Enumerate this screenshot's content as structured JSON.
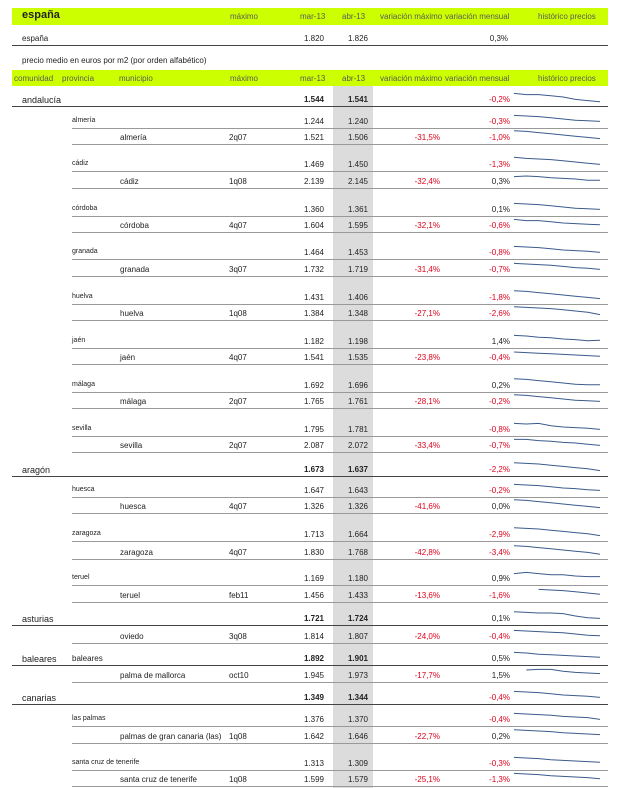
{
  "header": {
    "title": "españa",
    "col_max": "máximo",
    "col_mar": "mar-13",
    "col_abr": "abr-13",
    "col_var_max": "variación máximo",
    "col_var_mens": "variación mensual",
    "col_hist": "histórico precios"
  },
  "spain_row": {
    "name": "españa",
    "mar": "1.820",
    "abr": "1.826",
    "var_mens": "0,3%"
  },
  "subtitle": "precio medio en euros por m2 (por orden alfabético)",
  "table_header": {
    "comunidad": "comunidad",
    "provincia": "provincia",
    "municipio": "municipio",
    "max": "máximo",
    "mar": "mar-13",
    "abr": "abr-13",
    "var_max": "variación máximo",
    "var_mens": "variación mensual",
    "hist": "histórico precios"
  },
  "rows": [
    {
      "level": "comunidad",
      "name": "andalucía",
      "mar": "1.544",
      "abr": "1.541",
      "var_max": "",
      "var_mens": "-0,2%",
      "trend": [
        0.8,
        0.7,
        0.7,
        0.6,
        0.5,
        0.3,
        0.2,
        0.1
      ]
    },
    {
      "level": "provincia",
      "name": "almería",
      "mar": "1.244",
      "abr": "1.240",
      "var_max": "",
      "var_mens": "-0,3%",
      "trend": [
        0.8,
        0.75,
        0.7,
        0.6,
        0.5,
        0.4,
        0.35,
        0.3
      ]
    },
    {
      "level": "municipio",
      "name": "almería",
      "max": "2q07",
      "mar": "1.521",
      "abr": "1.506",
      "var_max": "-31,5%",
      "var_mens": "-1,0%",
      "trend": [
        0.85,
        0.8,
        0.7,
        0.6,
        0.5,
        0.4,
        0.3,
        0.2
      ]
    },
    {
      "level": "provincia",
      "name": "cádiz",
      "mar": "1.469",
      "abr": "1.450",
      "var_max": "",
      "var_mens": "-1,3%",
      "trend": [
        0.9,
        0.8,
        0.75,
        0.7,
        0.6,
        0.5,
        0.4,
        0.3
      ]
    },
    {
      "level": "municipio",
      "name": "cádiz",
      "max": "1q08",
      "mar": "2.139",
      "abr": "2.145",
      "var_max": "-32,4%",
      "var_mens": "0,3%",
      "trend": [
        0.7,
        0.75,
        0.7,
        0.6,
        0.55,
        0.5,
        0.4,
        0.4
      ]
    },
    {
      "level": "provincia",
      "name": "córdoba",
      "mar": "1.360",
      "abr": "1.361",
      "var_max": "",
      "var_mens": "0,1%",
      "trend": [
        0.8,
        0.75,
        0.7,
        0.6,
        0.5,
        0.4,
        0.35,
        0.3
      ]
    },
    {
      "level": "municipio",
      "name": "córdoba",
      "max": "4q07",
      "mar": "1.604",
      "abr": "1.595",
      "var_max": "-32,1%",
      "var_mens": "-0,6%",
      "trend": [
        0.8,
        0.7,
        0.7,
        0.6,
        0.5,
        0.45,
        0.4,
        0.35
      ]
    },
    {
      "level": "provincia",
      "name": "granada",
      "mar": "1.464",
      "abr": "1.453",
      "var_max": "",
      "var_mens": "-0,8%",
      "trend": [
        0.8,
        0.75,
        0.7,
        0.6,
        0.5,
        0.45,
        0.4,
        0.3
      ]
    },
    {
      "level": "municipio",
      "name": "granada",
      "max": "3q07",
      "mar": "1.732",
      "abr": "1.719",
      "var_max": "-31,4%",
      "var_mens": "-0,7%",
      "trend": [
        0.8,
        0.75,
        0.7,
        0.65,
        0.55,
        0.45,
        0.4,
        0.3
      ]
    },
    {
      "level": "provincia",
      "name": "huelva",
      "mar": "1.431",
      "abr": "1.406",
      "var_max": "",
      "var_mens": "-1,8%",
      "trend": [
        0.85,
        0.8,
        0.7,
        0.6,
        0.5,
        0.4,
        0.3,
        0.2
      ]
    },
    {
      "level": "municipio",
      "name": "huelva",
      "max": "1q08",
      "mar": "1.384",
      "abr": "1.348",
      "var_max": "-27,1%",
      "var_mens": "-2,6%",
      "trend": [
        0.85,
        0.8,
        0.75,
        0.7,
        0.6,
        0.5,
        0.4,
        0.2
      ]
    },
    {
      "level": "provincia",
      "name": "jaén",
      "mar": "1.182",
      "abr": "1.198",
      "var_max": "",
      "var_mens": "1,4%",
      "trend": [
        0.8,
        0.75,
        0.65,
        0.6,
        0.5,
        0.45,
        0.35,
        0.4
      ]
    },
    {
      "level": "municipio",
      "name": "jaén",
      "max": "4q07",
      "mar": "1.541",
      "abr": "1.535",
      "var_max": "-23,8%",
      "var_mens": "-0,4%",
      "trend": [
        0.75,
        0.7,
        0.65,
        0.6,
        0.55,
        0.5,
        0.45,
        0.4
      ]
    },
    {
      "level": "provincia",
      "name": "málaga",
      "mar": "1.692",
      "abr": "1.696",
      "var_max": "",
      "var_mens": "0,2%",
      "trend": [
        0.85,
        0.8,
        0.7,
        0.6,
        0.5,
        0.4,
        0.35,
        0.35
      ]
    },
    {
      "level": "municipio",
      "name": "málaga",
      "max": "2q07",
      "mar": "1.765",
      "abr": "1.761",
      "var_max": "-28,1%",
      "var_mens": "-0,2%",
      "trend": [
        0.85,
        0.8,
        0.7,
        0.6,
        0.5,
        0.4,
        0.35,
        0.3
      ]
    },
    {
      "level": "provincia",
      "name": "sevilla",
      "mar": "1.795",
      "abr": "1.781",
      "var_max": "",
      "var_mens": "-0,8%",
      "trend": [
        0.8,
        0.75,
        0.8,
        0.6,
        0.5,
        0.45,
        0.4,
        0.3
      ]
    },
    {
      "level": "municipio",
      "name": "sevilla",
      "max": "2q07",
      "mar": "2.087",
      "abr": "2.072",
      "var_max": "-33,4%",
      "var_mens": "-0,7%",
      "trend": [
        0.8,
        0.8,
        0.7,
        0.65,
        0.55,
        0.5,
        0.4,
        0.3
      ]
    },
    {
      "level": "comunidad",
      "name": "aragón",
      "mar": "1.673",
      "abr": "1.637",
      "var_max": "",
      "var_mens": "-2,2%",
      "trend": [
        0.85,
        0.8,
        0.75,
        0.65,
        0.55,
        0.45,
        0.35,
        0.2
      ]
    },
    {
      "level": "provincia",
      "name": "huesca",
      "mar": "1.647",
      "abr": "1.643",
      "var_max": "",
      "var_mens": "-0,2%",
      "trend": [
        0.8,
        0.75,
        0.7,
        0.6,
        0.5,
        0.45,
        0.35,
        0.3
      ]
    },
    {
      "level": "municipio",
      "name": "huesca",
      "max": "4q07",
      "mar": "1.326",
      "abr": "1.326",
      "var_max": "-41,6%",
      "var_mens": "0,0%",
      "trend": [
        0.85,
        0.8,
        0.7,
        0.6,
        0.5,
        0.4,
        0.3,
        0.2
      ]
    },
    {
      "level": "provincia",
      "name": "zaragoza",
      "mar": "1.713",
      "abr": "1.664",
      "var_max": "",
      "var_mens": "-2,9%",
      "trend": [
        0.85,
        0.8,
        0.75,
        0.65,
        0.55,
        0.45,
        0.35,
        0.2
      ]
    },
    {
      "level": "municipio",
      "name": "zaragoza",
      "max": "4q07",
      "mar": "1.830",
      "abr": "1.768",
      "var_max": "-42,8%",
      "var_mens": "-3,4%",
      "trend": [
        0.85,
        0.8,
        0.7,
        0.6,
        0.5,
        0.4,
        0.3,
        0.15
      ]
    },
    {
      "level": "provincia",
      "name": "teruel",
      "mar": "1.169",
      "abr": "1.180",
      "var_max": "",
      "var_mens": "0,9%",
      "trend": [
        0.7,
        0.8,
        0.7,
        0.6,
        0.6,
        0.5,
        0.45,
        0.45
      ]
    },
    {
      "level": "municipio",
      "name": "teruel",
      "max": "feb11",
      "mar": "1.456",
      "abr": "1.433",
      "var_max": "-13,6%",
      "var_mens": "-1,6%",
      "trend": [
        null,
        null,
        0.8,
        0.75,
        0.7,
        0.6,
        0.5,
        0.4
      ]
    },
    {
      "level": "comunidad",
      "name": "asturias",
      "mar": "1.721",
      "abr": "1.724",
      "var_max": "",
      "var_mens": "0,1%",
      "trend": [
        0.85,
        0.8,
        0.75,
        0.75,
        0.7,
        0.5,
        0.35,
        0.3
      ]
    },
    {
      "level": "municipio",
      "name": "oviedo",
      "max": "3q08",
      "mar": "1.814",
      "abr": "1.807",
      "var_max": "-24,0%",
      "var_mens": "-0,4%",
      "trend": [
        0.8,
        0.75,
        0.7,
        0.65,
        0.6,
        0.5,
        0.4,
        0.35
      ]
    },
    {
      "level": "comunidad",
      "name": "baleares",
      "provincia": "baleares",
      "mar": "1.892",
      "abr": "1.901",
      "var_max": "",
      "var_mens": "0,5%",
      "trend": [
        0.8,
        0.75,
        0.65,
        0.6,
        0.55,
        0.5,
        0.45,
        0.4
      ]
    },
    {
      "level": "municipio",
      "name": "palma de mallorca",
      "max": "oct10",
      "mar": "1.945",
      "abr": "1.973",
      "var_max": "-17,7%",
      "var_mens": "1,5%",
      "trend": [
        null,
        0.75,
        0.8,
        0.8,
        0.65,
        0.55,
        0.5,
        0.45
      ]
    },
    {
      "level": "comunidad",
      "name": "canarias",
      "mar": "1.349",
      "abr": "1.344",
      "var_max": "",
      "var_mens": "-0,4%",
      "trend": [
        0.8,
        0.75,
        0.7,
        0.6,
        0.5,
        0.45,
        0.4,
        0.3
      ]
    },
    {
      "level": "provincia",
      "name": "las palmas",
      "mar": "1.376",
      "abr": "1.370",
      "var_max": "",
      "var_mens": "-0,4%",
      "trend": [
        0.8,
        0.75,
        0.7,
        0.65,
        0.55,
        0.5,
        0.45,
        0.3
      ]
    },
    {
      "level": "municipio",
      "name": "palmas de gran canaria (las)",
      "max": "1q08",
      "mar": "1.642",
      "abr": "1.646",
      "var_max": "-22,7%",
      "var_mens": "0,2%",
      "trend": [
        0.85,
        0.8,
        0.75,
        0.7,
        0.6,
        0.55,
        0.5,
        0.45
      ]
    },
    {
      "level": "provincia",
      "name": "santa cruz de tenerife",
      "mar": "1.313",
      "abr": "1.309",
      "var_max": "",
      "var_mens": "-0,3%",
      "trend": [
        0.8,
        0.75,
        0.7,
        0.6,
        0.55,
        0.5,
        0.45,
        0.4
      ]
    },
    {
      "level": "municipio",
      "name": "santa cruz de tenerife",
      "max": "1q08",
      "mar": "1.599",
      "abr": "1.579",
      "var_max": "-25,1%",
      "var_mens": "-1,3%",
      "trend": [
        0.8,
        0.75,
        0.7,
        0.6,
        0.55,
        0.5,
        0.45,
        0.35
      ]
    }
  ]
}
